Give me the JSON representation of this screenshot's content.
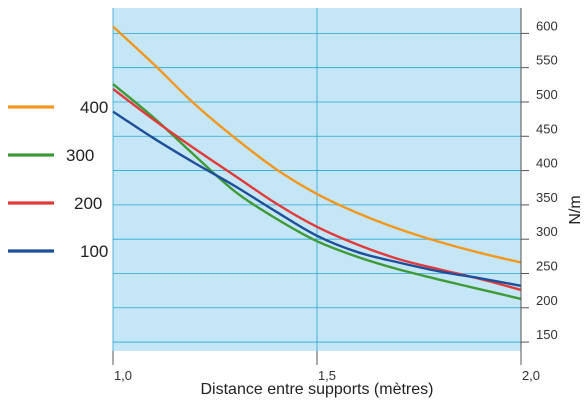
{
  "chart_data": {
    "type": "line",
    "title": "",
    "xlabel": "Distance entre supports (mètres)",
    "ylabel": "N/m",
    "xlim": [
      1.0,
      2.0
    ],
    "ylim": [
      137,
      637
    ],
    "x_ticks": [
      {
        "value": 1.0,
        "label": "1,0"
      },
      {
        "value": 1.5,
        "label": "1,5"
      },
      {
        "value": 2.0,
        "label": "2,0"
      }
    ],
    "y_ticks": [
      150,
      200,
      250,
      300,
      350,
      400,
      450,
      500,
      550,
      600
    ],
    "y_tick_labels": [
      "150",
      "200",
      "250",
      "300",
      "350",
      "400",
      "450",
      "500",
      "550",
      "600"
    ],
    "grid": true,
    "legend_position": "left",
    "plot_background": "#c5e6f7",
    "grid_color": "#2aa6cf",
    "series": [
      {
        "name": "400",
        "color": "#f3971d",
        "x": [
          1.0,
          1.1,
          1.2,
          1.3,
          1.4,
          1.5,
          1.6,
          1.7,
          1.8,
          1.9,
          2.0
        ],
        "values": [
          610,
          555,
          497,
          447,
          402,
          366,
          338,
          315,
          296,
          280,
          266
        ]
      },
      {
        "name": "300",
        "color": "#3e9a37",
        "x": [
          1.0,
          1.1,
          1.2,
          1.3,
          1.4,
          1.5,
          1.6,
          1.7,
          1.8,
          1.9,
          2.0
        ],
        "values": [
          526,
          477,
          422,
          369,
          330,
          297,
          274,
          256,
          241,
          227,
          213
        ]
      },
      {
        "name": "200",
        "color": "#e23a3a",
        "x": [
          1.0,
          1.1,
          1.2,
          1.3,
          1.4,
          1.5,
          1.6,
          1.7,
          1.8,
          1.9,
          2.0
        ],
        "values": [
          519,
          474,
          432,
          392,
          352,
          318,
          292,
          271,
          256,
          242,
          226
        ]
      },
      {
        "name": "100",
        "color": "#1e4f9a",
        "x": [
          1.0,
          1.1,
          1.2,
          1.3,
          1.4,
          1.5,
          1.6,
          1.7,
          1.8,
          1.9,
          2.0
        ],
        "values": [
          486,
          447,
          411,
          377,
          340,
          305,
          281,
          266,
          253,
          243,
          232
        ]
      }
    ]
  }
}
